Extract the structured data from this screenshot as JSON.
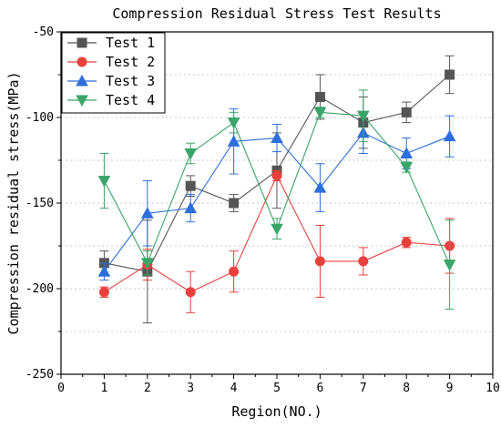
{
  "chart_data": {
    "type": "line",
    "title": "Compression Residual Stress Test Results",
    "xlabel": "Region(NO.)",
    "ylabel": "Compression residual stress(MPa)",
    "xlim": [
      0,
      10
    ],
    "ylim": [
      -250,
      -50
    ],
    "x_ticks": [
      0,
      1,
      2,
      3,
      4,
      5,
      6,
      7,
      8,
      9,
      10
    ],
    "y_ticks": [
      -250,
      -200,
      -150,
      -100,
      -50
    ],
    "grid": "horizontal dotted",
    "legend_position": "top-left",
    "x": [
      1,
      2,
      3,
      4,
      5,
      6,
      7,
      8,
      9
    ],
    "series": [
      {
        "name": "Test 1",
        "color": "#555555",
        "marker": "square",
        "values": [
          -185,
          -190,
          -140,
          -150,
          -131,
          -88,
          -103,
          -97,
          -75
        ],
        "errors": [
          7,
          30,
          6,
          5,
          22,
          13,
          15,
          6,
          11
        ]
      },
      {
        "name": "Test 2",
        "color": "#e8413c",
        "marker": "circle",
        "values": [
          -202,
          -186,
          -202,
          -190,
          -134,
          -184,
          -184,
          -173,
          -175
        ],
        "errors": [
          3,
          9,
          12,
          12,
          3,
          21,
          8,
          3,
          16
        ]
      },
      {
        "name": "Test 3",
        "color": "#2c6fdb",
        "marker": "triangle-up",
        "values": [
          -190,
          -156,
          -153,
          -114,
          -112,
          -141,
          -109,
          -121,
          -111
        ],
        "errors": [
          5,
          19,
          8,
          19,
          8,
          14,
          12,
          9,
          12
        ]
      },
      {
        "name": "Test 4",
        "color": "#3aa56a",
        "marker": "triangle-down",
        "values": [
          -137,
          -185,
          -121,
          -103,
          -165,
          -97,
          -99,
          -129,
          -186
        ],
        "errors": [
          16,
          7,
          6,
          6,
          6,
          3,
          15,
          3,
          26
        ]
      }
    ]
  }
}
